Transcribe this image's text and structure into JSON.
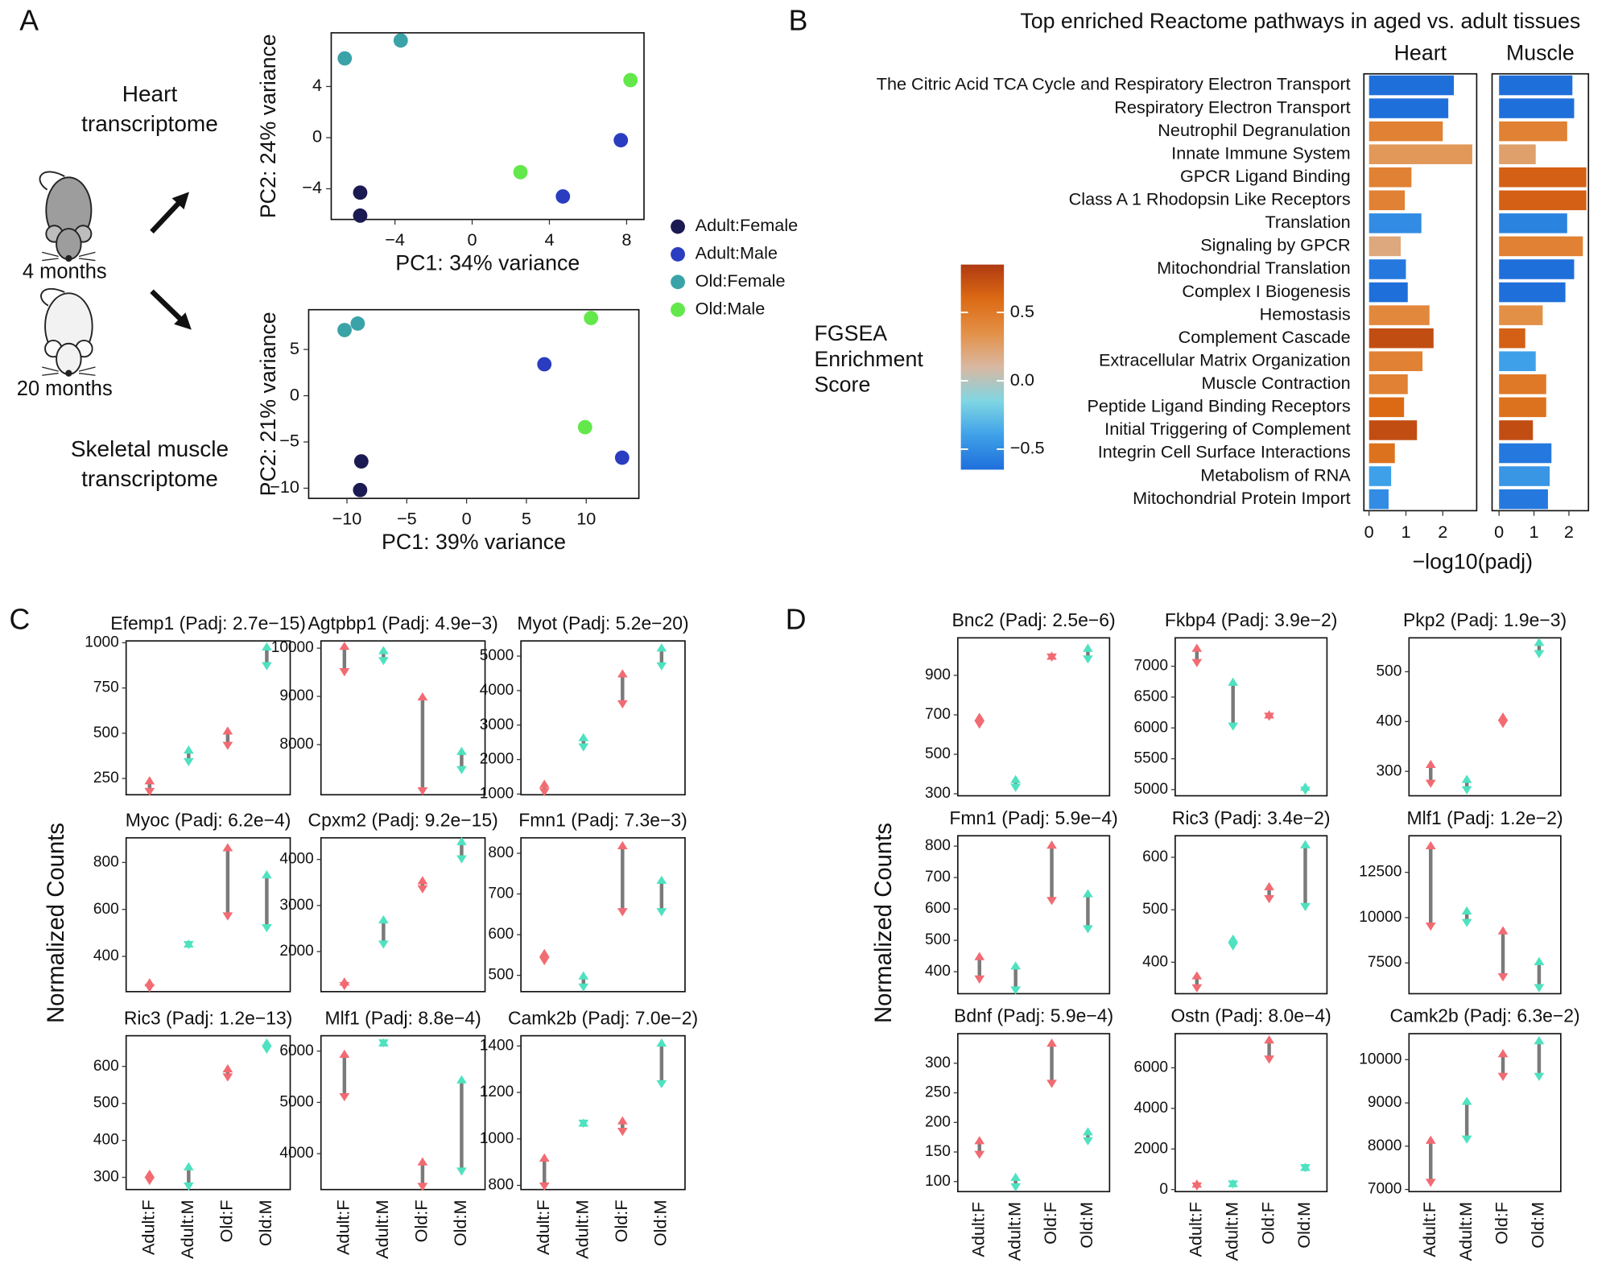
{
  "labels": {
    "panel_a": "A",
    "panel_b": "B",
    "panel_c": "C",
    "panel_d": "D",
    "heart": "Heart transcriptome",
    "muscle": "Skeletal muscle transcriptome",
    "young": "4 months",
    "old": "20 months"
  },
  "chart_data": [
    {
      "type": "scatter",
      "xlabel": "PC1: 34% variance",
      "ylabel": "PC2: 24% variance",
      "xlim": [
        -7.3,
        8.9
      ],
      "ylim": [
        -6.4,
        8.2
      ],
      "xticks": [
        {
          "value": -4,
          "label": "−4"
        },
        0,
        4,
        8
      ],
      "yticks": [
        {
          "value": -4,
          "label": "−4"
        },
        0,
        4
      ],
      "legend": "right",
      "series": [
        {
          "name": "Adult:Female",
          "color": "#1c1a52",
          "x": [
            -5.8,
            -5.8
          ],
          "values": [
            -4.3,
            -6.1
          ]
        },
        {
          "name": "Adult:Male",
          "color": "#2a3cc0",
          "x": [
            7.7,
            4.7
          ],
          "values": [
            -0.2,
            -4.6
          ]
        },
        {
          "name": "Old:Female",
          "color": "#3aa3a8",
          "x": [
            -6.6,
            -3.7
          ],
          "values": [
            6.2,
            7.6
          ]
        },
        {
          "name": "Old:Male",
          "color": "#62e84a",
          "x": [
            8.2,
            2.5
          ],
          "values": [
            4.5,
            -2.7
          ]
        }
      ]
    },
    {
      "type": "scatter",
      "xlabel": "PC1: 39% variance",
      "ylabel": "PC2: 21% variance",
      "xlim": [
        -13.2,
        14.4
      ],
      "ylim": [
        -11.1,
        9.3
      ],
      "xticks": [
        {
          "value": -10,
          "label": "−10"
        },
        {
          "value": -5,
          "label": "−5"
        },
        0,
        5,
        10
      ],
      "yticks": [
        {
          "value": -10,
          "label": "−10"
        },
        {
          "value": -5,
          "label": "−5"
        },
        0,
        5
      ],
      "series": [
        {
          "color": "#1c1a52",
          "x": [
            -8.8,
            -8.9
          ],
          "values": [
            -7.1,
            -10.2
          ]
        },
        {
          "color": "#2a3cc0",
          "x": [
            6.5,
            13.0
          ],
          "values": [
            3.4,
            -6.7
          ]
        },
        {
          "color": "#3aa3a8",
          "x": [
            -10.2,
            -9.1
          ],
          "values": [
            7.1,
            7.8
          ]
        },
        {
          "color": "#62e84a",
          "x": [
            10.4,
            9.9
          ],
          "values": [
            8.4,
            -3.4
          ]
        }
      ]
    },
    {
      "type": "barh",
      "title": "Top enriched Reactome pathways in aged vs. adult tissues",
      "xlabel": "−log10(padj)",
      "categories": [
        "The Citric Acid TCA Cycle and Respiratory Electron Transport",
        "Respiratory Electron Transport",
        "Neutrophil Degranulation",
        "Innate Immune System",
        "GPCR Ligand Binding",
        "Class A 1 Rhodopsin Like Receptors",
        "Translation",
        "Signaling by GPCR",
        "Mitochondrial Translation",
        "Complex I Biogenesis",
        "Hemostasis",
        "Complement Cascade",
        "Extracellular Matrix Organization",
        "Muscle Contraction",
        "Peptide Ligand Binding Receptors",
        "Initial Triggering of Complement",
        "Integrin Cell Surface Interactions",
        "Metabolism of RNA",
        "Mitochondrial Protein Import"
      ],
      "facets": [
        {
          "name": "Heart",
          "xlim": [
            -0.14,
            2.92
          ],
          "xticks": [
            0,
            1,
            2
          ],
          "values": [
            2.3,
            2.15,
            2.0,
            2.8,
            1.15,
            0.97,
            1.42,
            0.86,
            1.0,
            1.05,
            1.64,
            1.75,
            1.45,
            1.05,
            0.95,
            1.3,
            0.7,
            0.6,
            0.53
          ],
          "scores": [
            -0.65,
            -0.65,
            0.45,
            0.3,
            0.45,
            0.45,
            -0.5,
            0.2,
            -0.6,
            -0.65,
            0.4,
            0.75,
            0.45,
            0.45,
            0.6,
            0.75,
            0.55,
            -0.4,
            -0.5
          ]
        },
        {
          "name": "Muscle",
          "xlim": [
            -0.2,
            2.56
          ],
          "xticks": [
            0,
            1,
            2
          ],
          "values": [
            2.1,
            2.15,
            1.95,
            1.05,
            2.5,
            2.5,
            1.95,
            2.4,
            2.15,
            1.9,
            1.25,
            0.75,
            1.05,
            1.35,
            1.35,
            0.97,
            1.5,
            1.45,
            1.4
          ],
          "scores": [
            -0.65,
            -0.65,
            0.45,
            0.25,
            0.65,
            0.65,
            -0.55,
            0.45,
            -0.65,
            -0.65,
            0.35,
            0.65,
            -0.4,
            0.5,
            0.55,
            0.75,
            -0.6,
            -0.45,
            -0.6
          ]
        }
      ],
      "colorbar": {
        "label": "FGSEA Enrichment Score",
        "lim": [
          -0.65,
          0.85
        ],
        "ticks": [
          {
            "value": -0.5,
            "label": "−0.5"
          },
          {
            "value": 0,
            "label": "0.0"
          },
          0.5
        ],
        "colors": [
          "#1f6fdb",
          "#3ea0e8",
          "#7fd6e3",
          "#d9b8a2",
          "#e39047",
          "#dc6a14",
          "#b03a12"
        ]
      }
    },
    {
      "type": "range",
      "ylabel": "Normalized Counts",
      "categories": [
        "Adult:F",
        "Adult:M",
        "Old:F",
        "Old:M"
      ],
      "colors": [
        "#f26b72",
        "#4ee2c0",
        "#f26b72",
        "#4ee2c0"
      ],
      "line_color": "#7a7a7a",
      "plots": [
        {
          "title": "Efemp1 (Padj: 2.7e−15)",
          "ylim": [
            160,
            1010
          ],
          "yticks": [
            250,
            500,
            750,
            1000
          ],
          "low": [
            175,
            340,
            430,
            870
          ],
          "high": [
            240,
            410,
            515,
            980
          ]
        },
        {
          "title": "Agtpbp1 (Padj: 4.9e−3)",
          "ylim": [
            6960,
            10150
          ],
          "yticks": [
            8000,
            9000,
            10000
          ],
          "low": [
            9500,
            9730,
            7030,
            7470
          ],
          "high": [
            10050,
            9960,
            9000,
            7870
          ]
        },
        {
          "title": "Myot (Padj: 5.2e−20)",
          "ylim": [
            980,
            5440
          ],
          "yticks": [
            1000,
            2000,
            3000,
            4000,
            5000
          ],
          "low": [
            1050,
            2350,
            3600,
            4700
          ],
          "high": [
            1300,
            2650,
            4500,
            5250
          ]
        },
        {
          "title": "Myoc (Padj: 6.2e−4)",
          "ylim": [
            250,
            905
          ],
          "yticks": [
            400,
            600,
            800
          ],
          "low": [
            265,
            448,
            570,
            520
          ],
          "high": [
            290,
            455,
            865,
            750
          ]
        },
        {
          "title": "Cpxm2 (Padj: 9.2e−15)",
          "ylim": [
            1130,
            4470
          ],
          "yticks": [
            2000,
            3000,
            4000
          ],
          "low": [
            1250,
            2150,
            3350,
            4000
          ],
          "high": [
            1350,
            2700,
            3550,
            4400
          ]
        },
        {
          "title": "Fmn1 (Padj: 7.3e−3)",
          "ylim": [
            460,
            838
          ],
          "yticks": [
            500,
            600,
            700,
            800
          ],
          "low": [
            535,
            470,
            655,
            655
          ],
          "high": [
            555,
            500,
            820,
            735
          ]
        },
        {
          "title": "Ric3 (Padj: 1.2e−13)",
          "ylim": [
            267,
            683
          ],
          "yticks": [
            300,
            400,
            500,
            600
          ],
          "low": [
            290,
            275,
            570,
            645
          ],
          "high": [
            310,
            330,
            595,
            665
          ]
        },
        {
          "title": "Mlf1 (Padj: 8.8e−4)",
          "ylim": [
            3300,
            6300
          ],
          "yticks": [
            4000,
            5000,
            6000
          ],
          "low": [
            5100,
            6150,
            3350,
            3650
          ],
          "high": [
            5950,
            6170,
            3850,
            5450
          ]
        },
        {
          "title": "Camk2b (Padj: 7.0e−2)",
          "ylim": [
            782,
            1444
          ],
          "yticks": [
            800,
            1000,
            1200,
            1400
          ],
          "low": [
            795,
            1065,
            1030,
            1235
          ],
          "high": [
            920,
            1070,
            1080,
            1415
          ]
        }
      ]
    },
    {
      "type": "range",
      "ylabel": "Normalized Counts",
      "categories": [
        "Adult:F",
        "Adult:M",
        "Old:F",
        "Old:M"
      ],
      "colors": [
        "#f26b72",
        "#4ee2c0",
        "#f26b72",
        "#4ee2c0"
      ],
      "line_color": "#7a7a7a",
      "plots": [
        {
          "title": "Bnc2 (Padj: 2.5e−6)",
          "ylim": [
            290,
            1090
          ],
          "yticks": [
            300,
            500,
            700,
            900
          ],
          "low": [
            650,
            330,
            990,
            980
          ],
          "high": [
            690,
            375,
            1000,
            1040
          ]
        },
        {
          "title": "Fkbp4 (Padj: 3.9e−2)",
          "ylim": [
            4900,
            7460
          ],
          "yticks": [
            5000,
            5500,
            6000,
            6500,
            7000
          ],
          "low": [
            7050,
            6020,
            6180,
            4980
          ],
          "high": [
            7300,
            6750,
            6220,
            5050
          ]
        },
        {
          "title": "Pkp2 (Padj: 1.9e−3)",
          "ylim": [
            251,
            568
          ],
          "yticks": [
            300,
            400,
            500
          ],
          "low": [
            275,
            262,
            395,
            535
          ],
          "high": [
            315,
            285,
            410,
            560
          ]
        },
        {
          "title": "Fmn1 (Padj: 5.9e−4)",
          "ylim": [
            330,
            833
          ],
          "yticks": [
            400,
            500,
            600,
            700,
            800
          ],
          "low": [
            375,
            340,
            625,
            535
          ],
          "high": [
            450,
            420,
            805,
            650
          ]
        },
        {
          "title": "Ric3 (Padj: 3.4e−2)",
          "ylim": [
            340,
            641
          ],
          "yticks": [
            400,
            500,
            600
          ],
          "low": [
            350,
            430,
            520,
            505
          ],
          "high": [
            375,
            445,
            545,
            625
          ]
        },
        {
          "title": "Mlf1 (Padj: 1.2e−2)",
          "ylim": [
            5800,
            14520
          ],
          "yticks": [
            7500,
            10000,
            12500
          ],
          "low": [
            9500,
            9700,
            6700,
            6100
          ],
          "high": [
            14000,
            10400,
            9300,
            7600
          ]
        },
        {
          "title": "Bdnf (Padj: 5.9e−4)",
          "ylim": [
            83,
            350
          ],
          "yticks": [
            100,
            150,
            200,
            250,
            300
          ],
          "low": [
            145,
            90,
            265,
            168
          ],
          "high": [
            170,
            108,
            335,
            185
          ]
        },
        {
          "title": "Ostn (Padj: 8.0e−4)",
          "ylim": [
            -100,
            7680
          ],
          "yticks": [
            0,
            2000,
            4000,
            6000
          ],
          "low": [
            150,
            250,
            6400,
            1050
          ],
          "high": [
            300,
            320,
            7400,
            1120
          ]
        },
        {
          "title": "Camk2b (Padj: 6.3e−2)",
          "ylim": [
            6950,
            10600
          ],
          "yticks": [
            7000,
            8000,
            9000,
            10000
          ],
          "low": [
            7150,
            8150,
            9600,
            9600
          ],
          "high": [
            8150,
            9050,
            10150,
            10450
          ]
        }
      ]
    }
  ]
}
